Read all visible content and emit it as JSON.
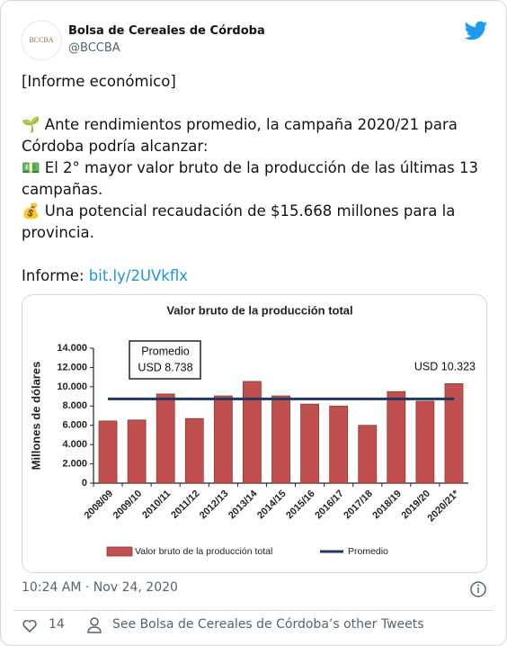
{
  "tweet": {
    "author": "Bolsa de Cereales de Córdoba",
    "handle": "@BCCBA",
    "logo_text": "BCCBA",
    "paragraphs": [
      "[Informe económico]",
      "🌱 Ante rendimientos promedio, la campaña 2020/21 para Córdoba podría alcanzar:",
      "💵 El 2° mayor valor bruto de la producción de las últimas 13 campañas.",
      "💰 Una potencial recaudación de $15.668 millones para la provincia."
    ],
    "link_label": "Informe:",
    "link": "bit.ly/2UVkflx",
    "timestamp": "10:24 AM · Nov 24, 2020",
    "likes": 14,
    "other_tweets": "See Bolsa de Cereales de Córdoba’s other Tweets"
  },
  "chart_data": {
    "type": "bar",
    "title": "Valor bruto de la producción total",
    "y_label": "Millones de dólares",
    "categories": [
      "2008/09",
      "2009/10",
      "2010/11",
      "2011/12",
      "2012/13",
      "2013/14",
      "2014/15",
      "2015/16",
      "2016/17",
      "2017/18",
      "2018/19",
      "2019/20",
      "2020/21*"
    ],
    "series": [
      {
        "name": "Valor bruto de la producción total",
        "type": "bar",
        "color": "#c0504d",
        "values": [
          6450,
          6550,
          9250,
          6700,
          9050,
          10550,
          9050,
          8200,
          8000,
          6000,
          9500,
          8500,
          10323
        ],
        "value_labels": [
          null,
          null,
          null,
          null,
          null,
          null,
          null,
          null,
          null,
          null,
          null,
          null,
          "USD 10.323"
        ]
      },
      {
        "name": "Promedio",
        "type": "line",
        "color": "#1f3864",
        "values": [
          8738,
          8738,
          8738,
          8738,
          8738,
          8738,
          8738,
          8738,
          8738,
          8738,
          8738,
          8738,
          8738
        ]
      }
    ],
    "annotations": [
      "Promedio",
      "USD 8.738"
    ],
    "ylim": [
      0,
      14000
    ],
    "yticks": [
      0,
      {
        "value": 2000,
        "label": "2.000"
      },
      {
        "value": 4000,
        "label": "4.000"
      },
      {
        "value": 6000,
        "label": "6.000"
      },
      {
        "value": 8000,
        "label": "8.000"
      },
      {
        "value": 10000,
        "label": "10.000"
      },
      {
        "value": 12000,
        "label": "12.000"
      },
      {
        "value": 14000,
        "label": "14.000"
      }
    ],
    "grid": false,
    "legend": "bottom"
  }
}
